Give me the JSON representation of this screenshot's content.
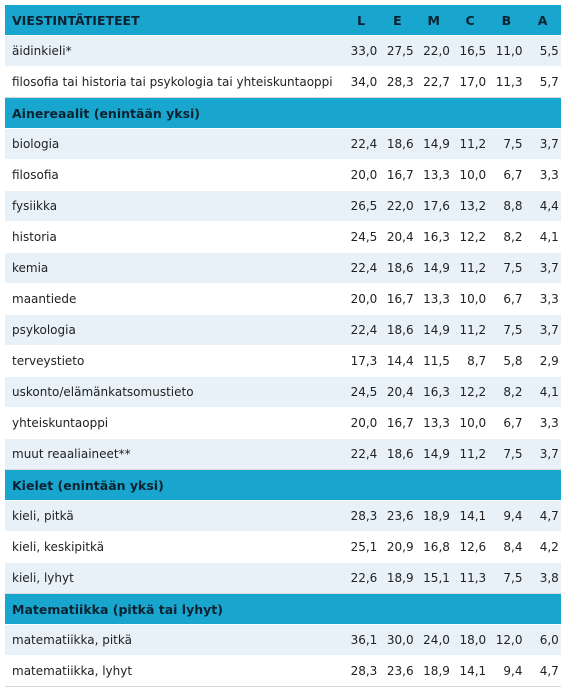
{
  "columns": [
    "L",
    "E",
    "M",
    "C",
    "B",
    "A"
  ],
  "sections": [
    {
      "title": "VIESTINTÄTIETEET",
      "show_columns": true,
      "rows": [
        {
          "name": "äidinkieli*",
          "values": [
            "33,0",
            "27,5",
            "22,0",
            "16,5",
            "11,0",
            "5,5"
          ]
        },
        {
          "name": "filosofia tai historia tai psykologia tai yhteiskuntaoppi",
          "values": [
            "34,0",
            "28,3",
            "22,7",
            "17,0",
            "11,3",
            "5,7"
          ]
        }
      ]
    },
    {
      "title": "Ainereaalit (enintään yksi)",
      "show_columns": false,
      "rows": [
        {
          "name": "biologia",
          "values": [
            "22,4",
            "18,6",
            "14,9",
            "11,2",
            "7,5",
            "3,7"
          ]
        },
        {
          "name": "filosofia",
          "values": [
            "20,0",
            "16,7",
            "13,3",
            "10,0",
            "6,7",
            "3,3"
          ]
        },
        {
          "name": "fysiikka",
          "values": [
            "26,5",
            "22,0",
            "17,6",
            "13,2",
            "8,8",
            "4,4"
          ]
        },
        {
          "name": "historia",
          "values": [
            "24,5",
            "20,4",
            "16,3",
            "12,2",
            "8,2",
            "4,1"
          ]
        },
        {
          "name": "kemia",
          "values": [
            "22,4",
            "18,6",
            "14,9",
            "11,2",
            "7,5",
            "3,7"
          ]
        },
        {
          "name": "maantiede",
          "values": [
            "20,0",
            "16,7",
            "13,3",
            "10,0",
            "6,7",
            "3,3"
          ]
        },
        {
          "name": "psykologia",
          "values": [
            "22,4",
            "18,6",
            "14,9",
            "11,2",
            "7,5",
            "3,7"
          ]
        },
        {
          "name": "terveystieto",
          "values": [
            "17,3",
            "14,4",
            "11,5",
            "8,7",
            "5,8",
            "2,9"
          ]
        },
        {
          "name": "uskonto/elämänkatsomustieto",
          "values": [
            "24,5",
            "20,4",
            "16,3",
            "12,2",
            "8,2",
            "4,1"
          ]
        },
        {
          "name": "yhteiskuntaoppi",
          "values": [
            "20,0",
            "16,7",
            "13,3",
            "10,0",
            "6,7",
            "3,3"
          ]
        },
        {
          "name": "muut reaaliaineet**",
          "values": [
            "22,4",
            "18,6",
            "14,9",
            "11,2",
            "7,5",
            "3,7"
          ]
        }
      ]
    },
    {
      "title": "Kielet (enintään yksi)",
      "show_columns": false,
      "rows": [
        {
          "name": "kieli, pitkä",
          "values": [
            "28,3",
            "23,6",
            "18,9",
            "14,1",
            "9,4",
            "4,7"
          ]
        },
        {
          "name": "kieli, keskipitkä",
          "values": [
            "25,1",
            "20,9",
            "16,8",
            "12,6",
            "8,4",
            "4,2"
          ]
        },
        {
          "name": "kieli, lyhyt",
          "values": [
            "22,6",
            "18,9",
            "15,1",
            "11,3",
            "7,5",
            "3,8"
          ]
        }
      ]
    },
    {
      "title": "Matematiikka (pitkä tai lyhyt)",
      "show_columns": false,
      "rows": [
        {
          "name": "matematiikka, pitkä",
          "values": [
            "36,1",
            "30,0",
            "24,0",
            "18,0",
            "12,0",
            "6,0"
          ]
        },
        {
          "name": "matematiikka, lyhyt",
          "values": [
            "28,3",
            "23,6",
            "18,9",
            "14,1",
            "9,4",
            "4,7"
          ]
        }
      ]
    }
  ],
  "colors": {
    "header_bg": "#18a6cf",
    "row_alt": "#e8f1f8",
    "row_plain": "#ffffff"
  }
}
